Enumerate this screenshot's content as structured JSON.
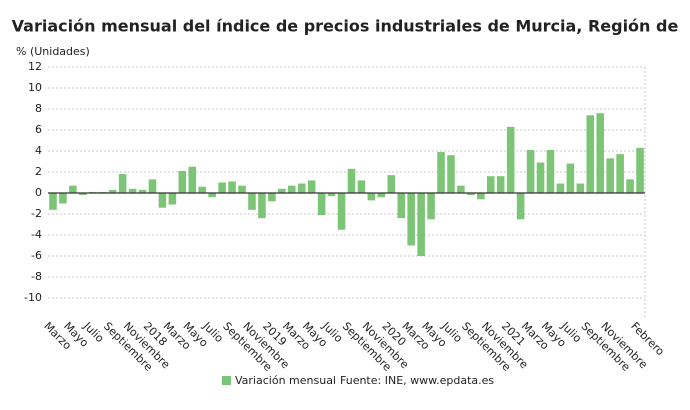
{
  "chart_data": {
    "type": "bar",
    "title": "Variación mensual del índice de precios industriales de Murcia, Región de",
    "y_label": "% (Unidades)",
    "source": "Fuente: INE, www.epdata.es",
    "categories": [
      "Marzo",
      null,
      "Mayo",
      null,
      "Julio",
      null,
      "Septiembre",
      null,
      "Noviembre",
      null,
      "2018",
      null,
      "Marzo",
      null,
      "Mayo",
      null,
      "Julio",
      null,
      "Septiembre",
      null,
      "Noviembre",
      null,
      "2019",
      null,
      "Marzo",
      null,
      "Mayo",
      null,
      "Julio",
      null,
      "Septiembre",
      null,
      "Noviembre",
      null,
      "2020",
      null,
      "Marzo",
      null,
      "Mayo",
      null,
      "Julio",
      null,
      "Septiembre",
      null,
      "Noviembre",
      null,
      "2021",
      null,
      "Marzo",
      null,
      "Mayo",
      null,
      "Julio",
      null,
      "Septiembre",
      null,
      "Noviembre",
      null,
      null,
      "Febrero"
    ],
    "series": [
      {
        "name": "Variación mensual",
        "color": "#7cc576",
        "values": [
          -1.6,
          -1.0,
          0.7,
          -0.2,
          0.1,
          0.1,
          0.3,
          1.8,
          0.4,
          0.3,
          1.3,
          -1.4,
          -1.1,
          2.1,
          2.5,
          0.6,
          -0.4,
          1.0,
          1.1,
          0.7,
          -1.6,
          -2.4,
          -0.8,
          0.4,
          0.7,
          0.9,
          1.2,
          -2.1,
          -0.3,
          -3.5,
          2.3,
          1.2,
          -0.7,
          -0.4,
          1.7,
          -2.4,
          -5.0,
          -6.0,
          -2.5,
          3.9,
          3.6,
          0.7,
          -0.2,
          -0.6,
          1.6,
          1.6,
          6.3,
          -2.5,
          4.1,
          2.9,
          4.1,
          0.9,
          2.8,
          0.9,
          7.4,
          7.6,
          3.3,
          3.7,
          1.3,
          4.3
        ]
      }
    ],
    "ylim": [
      -12,
      12
    ],
    "yticks": [
      -10,
      -8,
      -6,
      -4,
      -2,
      0,
      2,
      4,
      6,
      8,
      10,
      12
    ],
    "grid": true
  }
}
